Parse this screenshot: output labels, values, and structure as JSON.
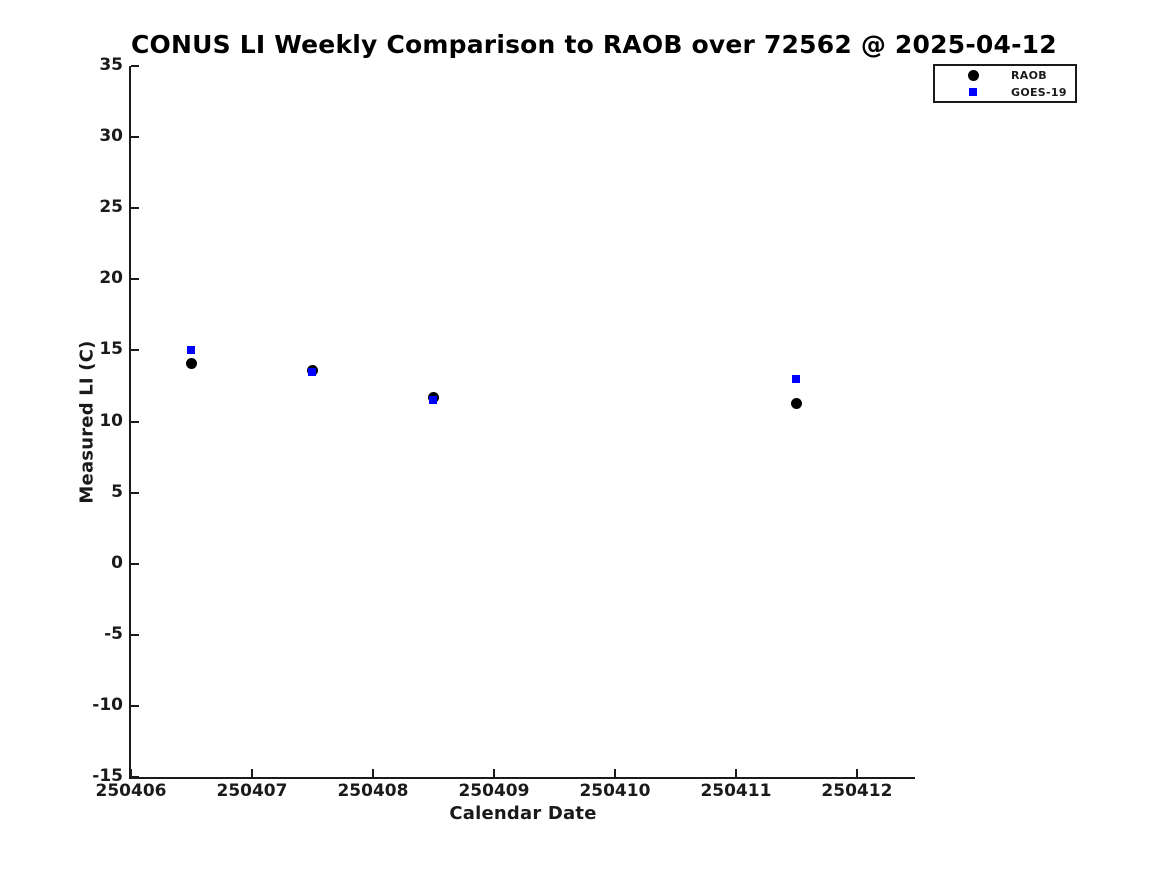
{
  "chart_data": {
    "type": "scatter",
    "title": "CONUS LI Weekly Comparison to RAOB over 72562 @ 2025-04-12",
    "xlabel": "Calendar Date",
    "ylabel": "Measured LI (C)",
    "xlim": [
      250406,
      250412.48
    ],
    "ylim": [
      -15,
      35
    ],
    "xticks": [
      250406,
      250407,
      250408,
      250409,
      250410,
      250411,
      250412
    ],
    "yticks": [
      -15,
      -10,
      -5,
      0,
      5,
      10,
      15,
      20,
      25,
      30,
      35
    ],
    "grid": false,
    "legend": {
      "position": "top-right",
      "entries": [
        "RAOB",
        "GOES-19"
      ]
    },
    "series": [
      {
        "name": "RAOB",
        "marker": "circle",
        "color": "#000000",
        "marker_size": 11,
        "points": [
          [
            250406.5,
            14.1
          ],
          [
            250407.5,
            13.6
          ],
          [
            250408.5,
            11.7
          ],
          [
            250411.5,
            11.3
          ]
        ]
      },
      {
        "name": "GOES-19",
        "marker": "square",
        "color": "#0000ff",
        "marker_size": 8,
        "points": [
          [
            250406.5,
            15.0
          ],
          [
            250407.5,
            13.5
          ],
          [
            250408.5,
            11.5
          ],
          [
            250411.5,
            13.0
          ]
        ]
      }
    ]
  }
}
